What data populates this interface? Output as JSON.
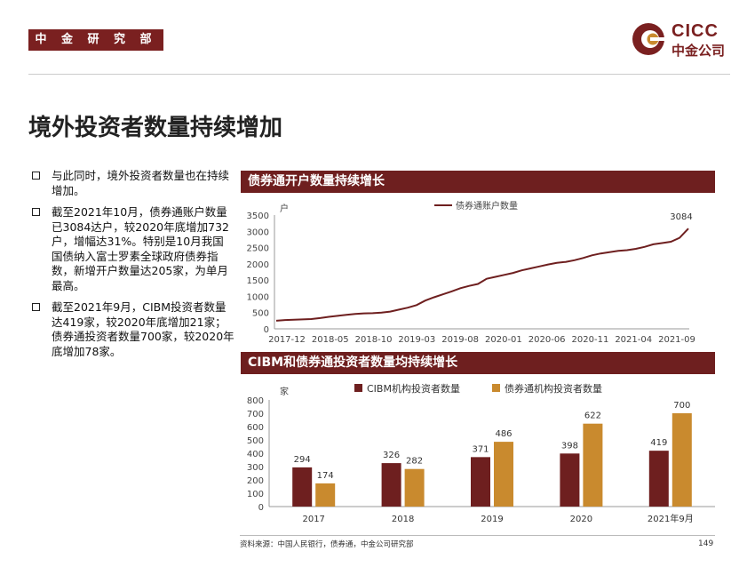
{
  "header": {
    "dept_label": "中 金 研 究 部",
    "logo_text_en": "CICC",
    "logo_text_cn": "中金公司",
    "brand_color": "#7a2020"
  },
  "page_title": "境外投资者数量持续增加",
  "bullets": [
    "与此同时，境外投资者数量也在持续增加。",
    "截至2021年10月，债券通账户数量已3084达户，较2020年底增加732户，增幅达31%。特别是10月我国国债纳入富士罗素全球政府债券指数，新增开户数量达205家，为单月最高。",
    "截至2021年9月，CIBM投资者数量达419家，较2020年底增加21家；债券通投资者数量700家，较2020年底增加78家。"
  ],
  "source": "资料来源：中国人民银行，债券通，中金公司研究部",
  "page_number": "149",
  "chart_data": [
    {
      "type": "line",
      "title": "债券通开户数量持续增长",
      "ylabel": "户",
      "ylim": [
        0,
        3500
      ],
      "yticks": [
        0,
        500,
        1000,
        1500,
        2000,
        2500,
        3000,
        3500
      ],
      "xtick_labels": [
        "2017-12",
        "2018-05",
        "2018-10",
        "2019-03",
        "2019-08",
        "2020-01",
        "2020-06",
        "2020-11",
        "2021-04",
        "2021-09"
      ],
      "series": [
        {
          "name": "债券通账户数量",
          "color": "#6e1f1f",
          "values": [
            250,
            270,
            280,
            290,
            300,
            330,
            370,
            400,
            430,
            460,
            475,
            480,
            500,
            530,
            590,
            650,
            730,
            870,
            970,
            1060,
            1150,
            1250,
            1320,
            1380,
            1540,
            1600,
            1660,
            1720,
            1800,
            1860,
            1920,
            1980,
            2030,
            2060,
            2110,
            2180,
            2260,
            2320,
            2360,
            2400,
            2420,
            2460,
            2520,
            2600,
            2640,
            2680,
            2800,
            3084
          ]
        }
      ],
      "end_label": "3084"
    },
    {
      "type": "bar",
      "title": "CIBM和债券通投资者数量均持续增长",
      "ylabel": "家",
      "ylim": [
        0,
        800
      ],
      "yticks": [
        0,
        100,
        200,
        300,
        400,
        500,
        600,
        700,
        800
      ],
      "categories": [
        "2017",
        "2018",
        "2019",
        "2020",
        "2021年9月"
      ],
      "series": [
        {
          "name": "CIBM机构投资者数量",
          "color": "#6e1f1f",
          "values": [
            294,
            326,
            371,
            398,
            419
          ]
        },
        {
          "name": "债券通机构投资者数量",
          "color": "#c98a2e",
          "values": [
            174,
            282,
            486,
            622,
            700
          ]
        }
      ]
    }
  ]
}
